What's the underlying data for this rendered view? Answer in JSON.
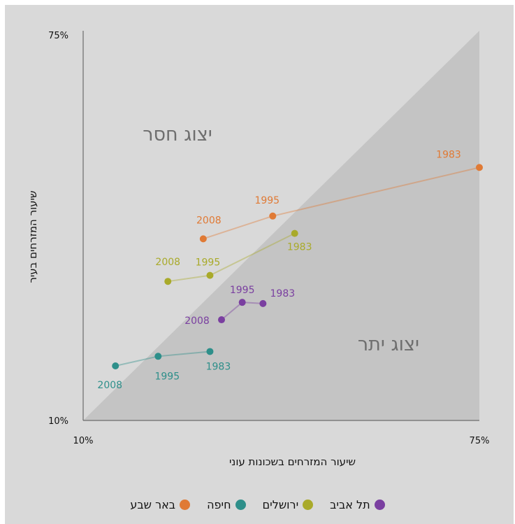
{
  "chart_data": {
    "type": "scatter",
    "xlabel": "שיעור המזרחים בשכונות עוני",
    "ylabel": "שיעור המזרחים בעיר",
    "xlim": [
      10,
      75
    ],
    "ylim": [
      10,
      75
    ],
    "x_ticks": [
      "10%",
      "75%"
    ],
    "y_ticks": [
      "10%",
      "75%"
    ],
    "regions": {
      "upper": "יצוג חסר",
      "lower": "יצוג יתר"
    },
    "series": [
      {
        "name": "באר שבע",
        "color": "#e07a35",
        "points": [
          {
            "label": "2008",
            "x": 29.7,
            "y": 40.3
          },
          {
            "label": "1995",
            "x": 41.1,
            "y": 44.1
          },
          {
            "label": "1983",
            "x": 75.0,
            "y": 52.2
          }
        ]
      },
      {
        "name": "חיפה",
        "color": "#2e8f8a",
        "points": [
          {
            "label": "2008",
            "x": 15.3,
            "y": 19.1
          },
          {
            "label": "1995",
            "x": 22.3,
            "y": 20.7
          },
          {
            "label": "1983",
            "x": 30.8,
            "y": 21.5
          }
        ]
      },
      {
        "name": "ירושלים",
        "color": "#a9aa2a",
        "points": [
          {
            "label": "2008",
            "x": 23.9,
            "y": 33.2
          },
          {
            "label": "1995",
            "x": 30.8,
            "y": 34.2
          },
          {
            "label": "1983",
            "x": 44.7,
            "y": 41.2
          }
        ]
      },
      {
        "name": "תל אביב",
        "color": "#7a3fa0",
        "points": [
          {
            "label": "2008",
            "x": 32.7,
            "y": 26.8
          },
          {
            "label": "1995",
            "x": 36.1,
            "y": 29.7
          },
          {
            "label": "1983",
            "x": 39.5,
            "y": 29.5
          }
        ]
      }
    ],
    "legend_order": [
      "באר שבע",
      "חיפה",
      "ירושלים",
      "תל אביב"
    ],
    "legend_position": "bottom"
  }
}
